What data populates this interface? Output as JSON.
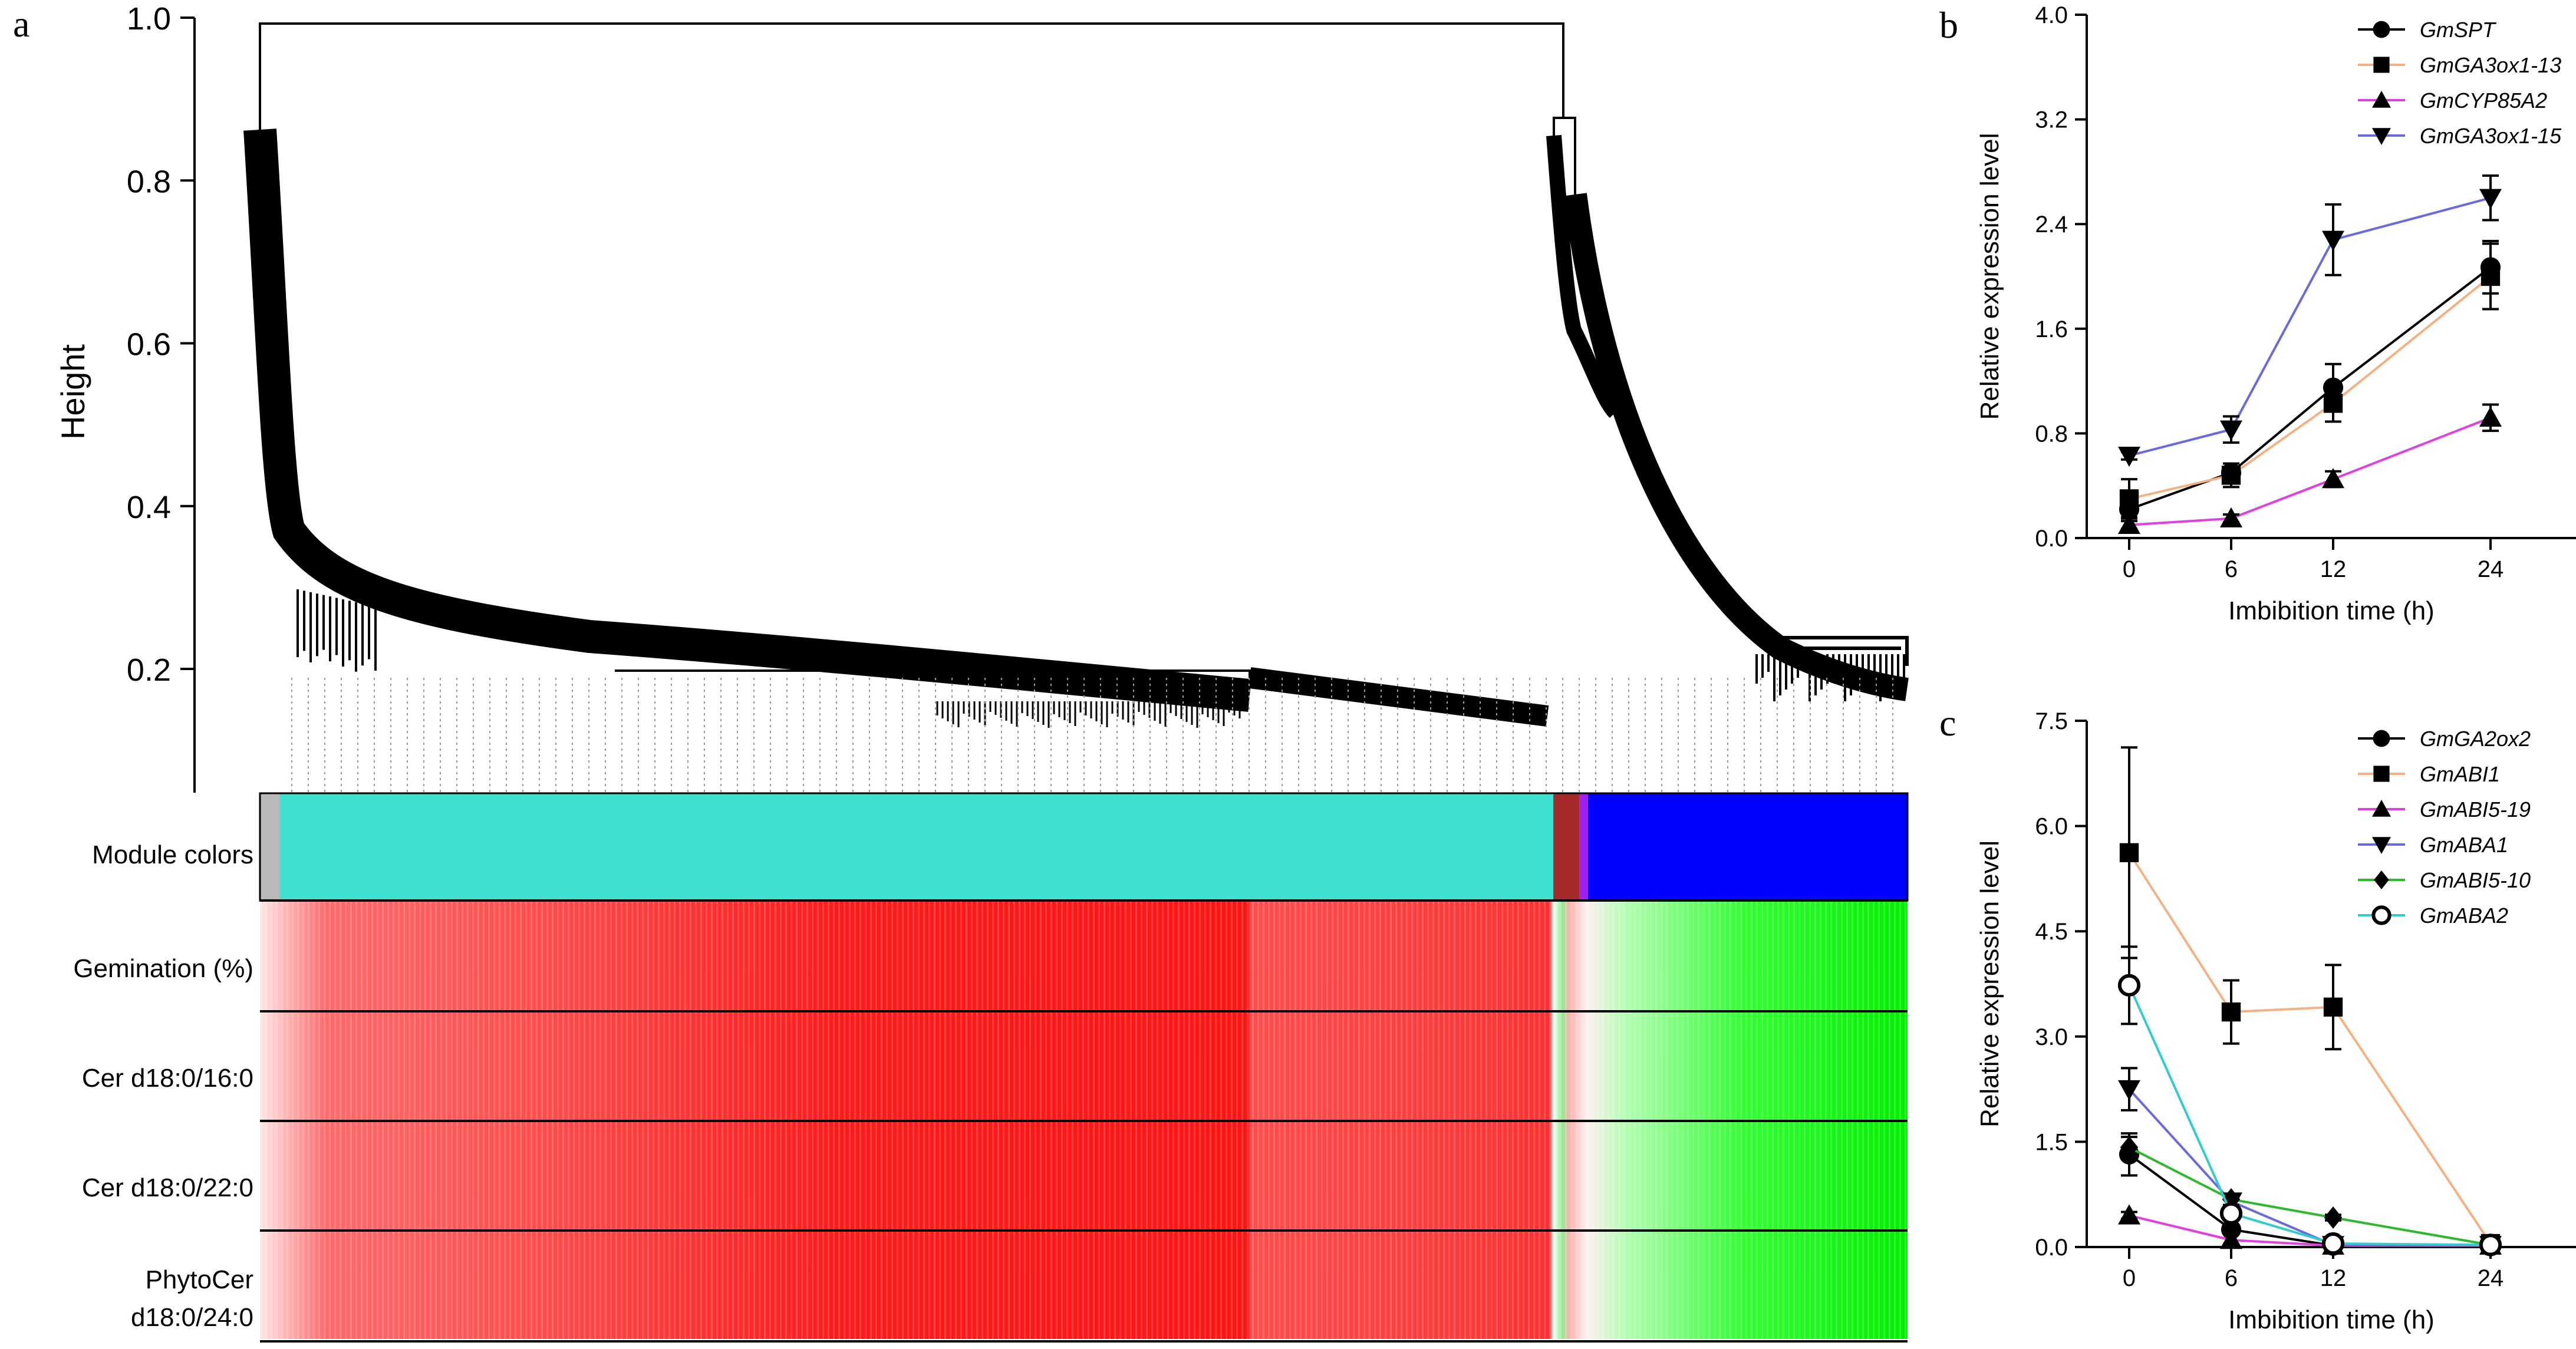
{
  "panel_a": {
    "label": "a",
    "ylabel": "Height",
    "yticks": [
      "0.2",
      "0.4",
      "0.6",
      "0.8",
      "1.0"
    ],
    "ytick_values": [
      0.2,
      0.4,
      0.6,
      0.8,
      1.0
    ],
    "ylim": [
      0.05,
      1.0
    ],
    "row_labels": [
      [
        "Module colors"
      ],
      [
        "Gemination (%)"
      ],
      [
        "Cer d18:0/16:0"
      ],
      [
        "Cer d18:0/22:0"
      ],
      [
        "PhytoCer",
        "d18:0/24:0"
      ]
    ],
    "module_colors": [
      {
        "name": "grey",
        "color": "#b9b9b9",
        "from": 0.0,
        "to": 0.012
      },
      {
        "name": "turquoise",
        "color": "#40e0d0",
        "from": 0.012,
        "to": 0.785
      },
      {
        "name": "brown",
        "color": "#a52a2a",
        "from": 0.785,
        "to": 0.801
      },
      {
        "name": "purple",
        "color": "#a020f0",
        "from": 0.801,
        "to": 0.806
      },
      {
        "name": "blue",
        "color": "#0000ff",
        "from": 0.806,
        "to": 1.0
      }
    ]
  },
  "chart_data": [
    {
      "type": "line",
      "panel": "b",
      "x": [
        0,
        6,
        12,
        24
      ],
      "xticks": [
        "0",
        "6",
        "12",
        "24"
      ],
      "xlabel": "Imbibition time (h)",
      "ylabel": "Relative expression level",
      "ylim": [
        0,
        4.0
      ],
      "yticks": [
        "0.0",
        "0.8",
        "1.6",
        "2.4",
        "3.2",
        "4.0"
      ],
      "ytick_values": [
        0,
        0.8,
        1.6,
        2.4,
        3.2,
        4.0
      ],
      "series": [
        {
          "name": "GmSPT",
          "marker": "circle",
          "color": "#000000",
          "values": [
            0.22,
            0.5,
            1.15,
            2.07
          ],
          "errors": [
            0.06,
            0.07,
            0.18,
            0.2
          ]
        },
        {
          "name": "GmGA3ox1-13",
          "marker": "square",
          "color": "#f4b183",
          "values": [
            0.3,
            0.48,
            1.03,
            2.0
          ],
          "errors": [
            0.15,
            0.09,
            0.14,
            0.25
          ]
        },
        {
          "name": "GmCYP85A2",
          "marker": "triangle-up",
          "color": "#e040e0",
          "values": [
            0.1,
            0.15,
            0.45,
            0.92
          ],
          "errors": [
            0.03,
            0.03,
            0.06,
            0.1
          ]
        },
        {
          "name": "GmGA3ox1-15",
          "marker": "triangle-down",
          "color": "#6a6ae0",
          "values": [
            0.63,
            0.83,
            2.28,
            2.6
          ],
          "errors": [
            0.03,
            0.1,
            0.27,
            0.17
          ]
        }
      ]
    },
    {
      "type": "line",
      "panel": "c",
      "x": [
        0,
        6,
        12,
        24
      ],
      "xticks": [
        "0",
        "6",
        "12",
        "24"
      ],
      "xlabel": "Imbibition time (h)",
      "ylabel": "Relative expression level",
      "ylim": [
        0,
        7.5
      ],
      "yticks": [
        "0.0",
        "1.5",
        "3.0",
        "4.5",
        "6.0",
        "7.5"
      ],
      "ytick_values": [
        0,
        1.5,
        3.0,
        4.5,
        6.0,
        7.5
      ],
      "series": [
        {
          "name": "GmGA2ox2",
          "marker": "circle",
          "color": "#000000",
          "values": [
            1.32,
            0.25,
            0.02,
            0.03
          ],
          "errors": [
            0.3,
            0.05,
            0.01,
            0.01
          ]
        },
        {
          "name": "GmABI1",
          "marker": "square",
          "color": "#f4b183",
          "values": [
            5.62,
            3.35,
            3.42,
            0.05
          ],
          "errors": [
            1.5,
            0.45,
            0.6,
            0.01
          ]
        },
        {
          "name": "GmABI5-19",
          "marker": "triangle-up",
          "color": "#e040e0",
          "values": [
            0.45,
            0.1,
            0.02,
            0.02
          ],
          "errors": [
            0.05,
            0.02,
            0.01,
            0.01
          ]
        },
        {
          "name": "GmABA1",
          "marker": "triangle-down",
          "color": "#6a6ae0",
          "values": [
            2.25,
            0.65,
            0.03,
            0.03
          ],
          "errors": [
            0.3,
            0.1,
            0.01,
            0.01
          ]
        },
        {
          "name": "GmABI5-10",
          "marker": "diamond",
          "color": "#2eb82e",
          "values": [
            1.42,
            0.68,
            0.42,
            0.03
          ],
          "errors": [
            0.15,
            0.08,
            0.04,
            0.01
          ]
        },
        {
          "name": "GmABA2",
          "marker": "open-circle",
          "color": "#33cccc",
          "values": [
            3.73,
            0.48,
            0.05,
            0.03
          ],
          "errors": [
            0.55,
            0.1,
            0.01,
            0.01
          ]
        }
      ]
    }
  ]
}
